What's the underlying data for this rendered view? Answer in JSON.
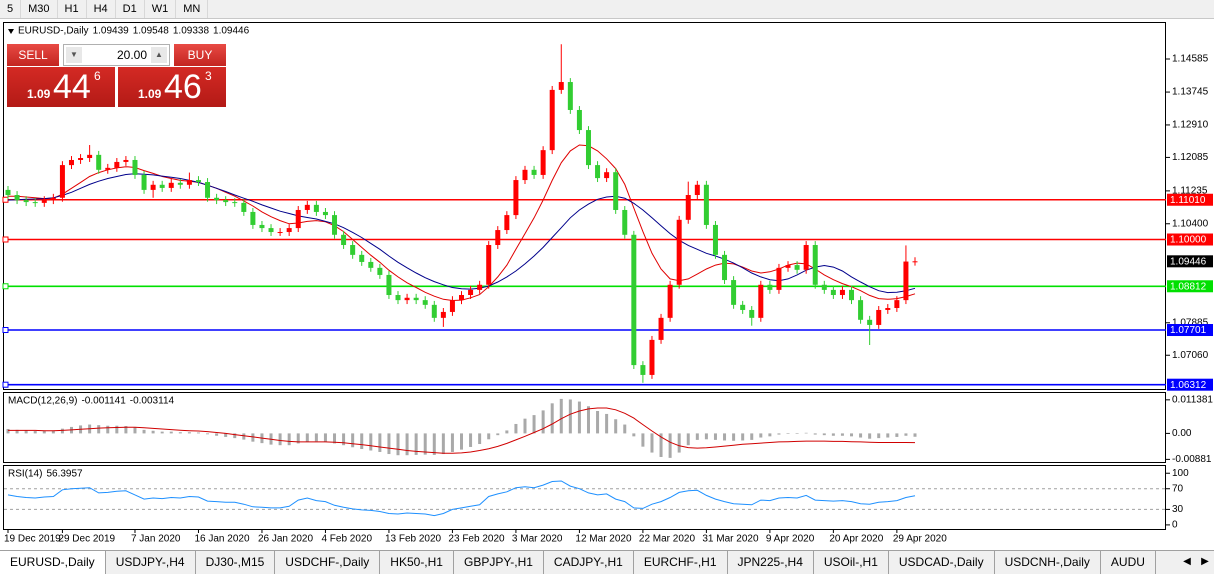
{
  "toolbar": [
    "5",
    "M30",
    "H1",
    "H4",
    "D1",
    "W1",
    "MN"
  ],
  "trade_panel": {
    "sell": "SELL",
    "volume": "20.00",
    "buy": "BUY",
    "bid": {
      "big": "1.09",
      "main": "44",
      "pip": "6"
    },
    "ask": {
      "big": "1.09",
      "main": "46",
      "pip": "3"
    }
  },
  "tabs": [
    "EURUSD-,Daily",
    "USDJPY-,H4",
    "DJ30-,M15",
    "USDCHF-,Daily",
    "HK50-,H1",
    "GBPJPY-,H1",
    "CADJPY-,H1",
    "EURCHF-,H1",
    "JPN225-,H4",
    "USOil-,H1",
    "USDCAD-,Daily",
    "USDCNH-,Daily",
    "AUDU"
  ],
  "chart_data": [
    {
      "type": "candlestick",
      "title": "EURUSD-,Daily",
      "categories": [
        "19 Dec 2019",
        null,
        null,
        null,
        null,
        null,
        "29 Dec 2019",
        null,
        null,
        null,
        null,
        null,
        null,
        null,
        "7 Jan 2020",
        null,
        null,
        null,
        null,
        null,
        null,
        "16 Jan 2020",
        null,
        null,
        null,
        null,
        null,
        null,
        "26 Jan 2020",
        null,
        null,
        null,
        null,
        null,
        null,
        "4 Feb 2020",
        null,
        null,
        null,
        null,
        null,
        null,
        "13 Feb 2020",
        null,
        null,
        null,
        null,
        null,
        null,
        "23 Feb 2020",
        null,
        null,
        null,
        null,
        null,
        null,
        "3 Mar 2020",
        null,
        null,
        null,
        null,
        null,
        null,
        "12 Mar 2020",
        null,
        null,
        null,
        null,
        null,
        null,
        "22 Mar 2020",
        null,
        null,
        null,
        null,
        null,
        null,
        "31 Mar 2020",
        null,
        null,
        null,
        null,
        null,
        null,
        "9 Apr 2020",
        null,
        null,
        null,
        null,
        null,
        null,
        "20 Apr 2020",
        null,
        null,
        null,
        null,
        null,
        null,
        "29 Apr 2020",
        null,
        null
      ],
      "open": [
        1.1126,
        1.1113,
        1.11,
        1.1095,
        1.1093,
        1.11,
        1.1106,
        1.1189,
        1.1202,
        1.1207,
        1.1215,
        1.1177,
        1.1182,
        1.1197,
        1.1202,
        1.1164,
        1.1126,
        1.1139,
        1.1131,
        1.1144,
        1.1139,
        1.1151,
        1.1146,
        1.1106,
        1.11,
        1.1095,
        1.1093,
        1.107,
        1.1037,
        1.1029,
        1.1019,
        1.1019,
        1.1029,
        1.1075,
        1.1088,
        1.107,
        1.1062,
        1.1012,
        1.0986,
        1.0961,
        1.0943,
        1.0928,
        1.091,
        1.0859,
        1.0846,
        1.0852,
        1.0846,
        1.0834,
        1.0801,
        1.0816,
        1.0846,
        1.0859,
        1.0872,
        1.0885,
        1.0986,
        1.1024,
        1.1062,
        1.1151,
        1.1177,
        1.1164,
        1.1227,
        1.138,
        1.14,
        1.1329,
        1.1278,
        1.1189,
        1.1156,
        1.1171,
        1.1075,
        1.1012,
        1.0681,
        1.0656,
        1.0745,
        1.0801,
        1.0885,
        1.105,
        1.1113,
        1.1139,
        1.1037,
        1.0961,
        1.0897,
        1.0834,
        1.0821,
        1.0801,
        1.0885,
        1.0872,
        1.0928,
        1.0935,
        1.0923,
        1.0986,
        1.0885,
        1.0872,
        1.0859,
        1.0872,
        1.0846,
        1.0796,
        1.0783,
        1.0821,
        1.0826,
        1.0846,
        1.09439
      ],
      "high": [
        1.1136,
        1.1123,
        1.111,
        1.1105,
        1.111,
        1.1116,
        1.1199,
        1.1212,
        1.1217,
        1.124,
        1.1225,
        1.1192,
        1.1207,
        1.1212,
        1.1212,
        1.1174,
        1.1149,
        1.1149,
        1.1154,
        1.1154,
        1.117,
        1.1161,
        1.1156,
        1.1116,
        1.111,
        1.1105,
        1.1103,
        1.108,
        1.1047,
        1.1039,
        1.1029,
        1.1039,
        1.1085,
        1.1098,
        1.1098,
        1.108,
        1.1072,
        1.1022,
        1.0996,
        1.0971,
        1.0953,
        1.0938,
        1.092,
        1.0869,
        1.0862,
        1.0862,
        1.0856,
        1.0844,
        1.0826,
        1.0856,
        1.0869,
        1.0882,
        1.0895,
        1.0996,
        1.1034,
        1.1072,
        1.1161,
        1.1187,
        1.1187,
        1.1237,
        1.139,
        1.1496,
        1.141,
        1.1339,
        1.1288,
        1.1199,
        1.1181,
        1.1181,
        1.1085,
        1.1022,
        1.0691,
        1.0755,
        1.0811,
        1.0895,
        1.106,
        1.1147,
        1.1149,
        1.1149,
        1.1047,
        1.0971,
        1.0907,
        1.0844,
        1.0831,
        1.0895,
        1.0895,
        1.0938,
        1.0945,
        1.0945,
        1.0996,
        1.0996,
        1.0895,
        1.0882,
        1.0882,
        1.0882,
        1.0856,
        1.0806,
        1.0831,
        1.0836,
        1.0856,
        1.0985,
        1.09548
      ],
      "low": [
        1.1103,
        1.109,
        1.1085,
        1.1083,
        1.1083,
        1.109,
        1.1096,
        1.1179,
        1.1192,
        1.1197,
        1.1167,
        1.1167,
        1.1172,
        1.1187,
        1.1154,
        1.1116,
        1.1106,
        1.1121,
        1.1121,
        1.1129,
        1.1129,
        1.1136,
        1.1096,
        1.109,
        1.1085,
        1.1083,
        1.106,
        1.1027,
        1.1019,
        1.1009,
        1.1009,
        1.1009,
        1.1019,
        1.1065,
        1.106,
        1.1052,
        1.1002,
        1.0976,
        1.0951,
        1.0933,
        1.0918,
        1.09,
        1.0849,
        1.0836,
        1.0836,
        1.0836,
        1.0824,
        1.0791,
        1.0778,
        1.0806,
        1.0836,
        1.0849,
        1.0862,
        1.0875,
        1.0976,
        1.1014,
        1.1052,
        1.1141,
        1.1154,
        1.1154,
        1.1217,
        1.137,
        1.1319,
        1.1268,
        1.1179,
        1.1146,
        1.1146,
        1.1065,
        1.1002,
        1.0671,
        1.0636,
        1.0646,
        1.0735,
        1.0791,
        1.0875,
        1.104,
        1.1103,
        1.1027,
        1.0951,
        1.0887,
        1.0824,
        1.0811,
        1.0781,
        1.0791,
        1.0862,
        1.0862,
        1.0918,
        1.0913,
        1.0913,
        1.0875,
        1.0862,
        1.0849,
        1.0849,
        1.0836,
        1.0786,
        1.0732,
        1.0773,
        1.0811,
        1.0816,
        1.0836,
        1.09338
      ],
      "close": [
        1.1113,
        1.11,
        1.1095,
        1.1093,
        1.11,
        1.1106,
        1.1189,
        1.1202,
        1.1207,
        1.1215,
        1.1177,
        1.1182,
        1.1197,
        1.1202,
        1.1164,
        1.1126,
        1.1139,
        1.1131,
        1.1144,
        1.1139,
        1.1151,
        1.1146,
        1.1106,
        1.11,
        1.1095,
        1.1093,
        1.107,
        1.1037,
        1.1029,
        1.1019,
        1.1019,
        1.1029,
        1.1075,
        1.1088,
        1.107,
        1.1062,
        1.1012,
        1.0986,
        1.0961,
        1.0943,
        1.0928,
        1.091,
        1.0859,
        1.0846,
        1.0852,
        1.0846,
        1.0834,
        1.0801,
        1.0816,
        1.0846,
        1.0859,
        1.0872,
        1.0885,
        1.0986,
        1.1024,
        1.1062,
        1.1151,
        1.1177,
        1.1164,
        1.1227,
        1.138,
        1.14,
        1.1329,
        1.1278,
        1.1189,
        1.1156,
        1.1171,
        1.1075,
        1.1012,
        1.0681,
        1.0656,
        1.0745,
        1.0801,
        1.0885,
        1.105,
        1.1113,
        1.1139,
        1.1037,
        1.0961,
        1.0897,
        1.0834,
        1.0821,
        1.0801,
        1.0885,
        1.0872,
        1.0928,
        1.0935,
        1.0923,
        1.0986,
        1.0885,
        1.0872,
        1.0859,
        1.0872,
        1.0846,
        1.0796,
        1.0783,
        1.0821,
        1.0826,
        1.0846,
        1.0944,
        1.09446
      ],
      "up_color": "#ff0000",
      "down_color": "#32cd32",
      "lines": [
        {
          "color": "#e00000",
          "values": [
            1.111,
            1.111,
            1.1108,
            1.1106,
            1.1104,
            1.1105,
            1.1115,
            1.113,
            1.1145,
            1.116,
            1.117,
            1.1177,
            1.1182,
            1.1185,
            1.1183,
            1.1175,
            1.1168,
            1.116,
            1.1155,
            1.115,
            1.1148,
            1.1145,
            1.1138,
            1.113,
            1.112,
            1.111,
            1.1098,
            1.1085,
            1.107,
            1.1058,
            1.1048,
            1.104,
            1.1042,
            1.1046,
            1.1048,
            1.1045,
            1.1035,
            1.102,
            1.1,
            1.098,
            1.096,
            1.0942,
            1.0922,
            1.0905,
            1.089,
            1.0878,
            1.0866,
            1.0856,
            1.0848,
            1.0845,
            1.0846,
            1.0852,
            1.086,
            1.088,
            1.0905,
            1.0935,
            1.0975,
            1.1015,
            1.1055,
            1.11,
            1.115,
            1.1195,
            1.1225,
            1.124,
            1.1238,
            1.1225,
            1.1205,
            1.118,
            1.114,
            1.108,
            1.102,
            1.0965,
            1.0925,
            1.09,
            1.0895,
            1.09,
            1.0912,
            1.0925,
            1.0935,
            1.094,
            1.0938,
            1.093,
            1.092,
            1.0915,
            1.0918,
            1.0925,
            1.0935,
            1.094,
            1.0938,
            1.0925,
            1.091,
            1.0898,
            1.0888,
            1.088,
            1.087,
            1.0858,
            1.085,
            1.0848,
            1.085,
            1.0855,
            1.0862
          ]
        },
        {
          "color": "#00008b",
          "values": [
            1.11,
            1.1101,
            1.1102,
            1.1103,
            1.1104,
            1.1106,
            1.1112,
            1.112,
            1.113,
            1.114,
            1.1148,
            1.1155,
            1.116,
            1.1165,
            1.1167,
            1.1166,
            1.1164,
            1.1161,
            1.1158,
            1.1155,
            1.115,
            1.1145,
            1.1138,
            1.113,
            1.1122,
            1.1113,
            1.1105,
            1.1097,
            1.1088,
            1.108,
            1.1072,
            1.1066,
            1.106,
            1.1056,
            1.1052,
            1.1046,
            1.104,
            1.103,
            1.1018,
            1.1005,
            1.099,
            1.0975,
            1.0958,
            1.0942,
            1.0928,
            1.0915,
            1.0903,
            1.0893,
            1.0885,
            1.0878,
            1.0875,
            1.0874,
            1.0876,
            1.0882,
            1.0892,
            1.0905,
            1.092,
            1.0938,
            1.0958,
            1.098,
            1.1005,
            1.103,
            1.1055,
            1.1075,
            1.109,
            1.1102,
            1.1108,
            1.111,
            1.1105,
            1.1092,
            1.1075,
            1.1055,
            1.1035,
            1.1015,
            1.0998,
            1.0985,
            1.0975,
            1.0965,
            1.0958,
            1.095,
            1.094,
            1.0928,
            1.0915,
            1.0905,
            1.0898,
            1.0895,
            1.09,
            1.091,
            1.0922,
            1.093,
            1.0934,
            1.093,
            1.092,
            1.0905,
            1.0892,
            1.088,
            1.087,
            1.0865,
            1.0866,
            1.087,
            1.0876
          ]
        }
      ],
      "levels": [
        {
          "value": 1.1101,
          "label": "1.11010",
          "color": "#ff0000"
        },
        {
          "value": 1.1,
          "label": "1.10000",
          "color": "#ff0000"
        },
        {
          "value": 1.08812,
          "color": "#00e000"
        },
        {
          "value": 1.07701,
          "color": "#0000ff"
        },
        {
          "value": 1.06312,
          "color": "#0000ff"
        }
      ],
      "ylim": [
        1.06228,
        1.15474
      ],
      "yticks": [
        1.14585,
        1.13745,
        {
          "value": 1.1291,
          "label": "1.12910"
        },
        1.12085,
        1.11235,
        {
          "value": 1.104,
          "label": "1.10400"
        },
        1.07885,
        {
          "value": 1.0706,
          "label": "1.07060"
        }
      ]
    },
    {
      "type": "macd",
      "title": "MACD(12,26,9)",
      "histogram": {
        "color": "#a9a9a9",
        "values": [
          0.0015,
          0.0012,
          0.001,
          0.0008,
          0.0008,
          0.0009,
          0.0016,
          0.0022,
          0.0027,
          0.003,
          0.0028,
          0.0026,
          0.0026,
          0.0025,
          0.002,
          0.0012,
          0.0009,
          0.0006,
          0.0006,
          0.0004,
          0.0004,
          0.0003,
          -0.0003,
          -0.0008,
          -0.0012,
          -0.0016,
          -0.0021,
          -0.0028,
          -0.0033,
          -0.0038,
          -0.004,
          -0.004,
          -0.0034,
          -0.0028,
          -0.0027,
          -0.0028,
          -0.0034,
          -0.004,
          -0.0047,
          -0.0053,
          -0.0058,
          -0.0063,
          -0.007,
          -0.0074,
          -0.0074,
          -0.0073,
          -0.0072,
          -0.0073,
          -0.007,
          -0.0063,
          -0.0055,
          -0.0046,
          -0.0036,
          -0.002,
          -0.0006,
          0.001,
          0.0032,
          0.005,
          0.0062,
          0.0078,
          0.0102,
          0.0117,
          0.0115,
          0.0108,
          0.0092,
          0.0076,
          0.0066,
          0.0048,
          0.003,
          -0.001,
          -0.0045,
          -0.0065,
          -0.008,
          -0.0083,
          -0.0065,
          -0.004,
          -0.0022,
          -0.002,
          -0.0022,
          -0.0024,
          -0.0025,
          -0.0024,
          -0.0022,
          -0.0014,
          -0.001,
          -0.0004,
          -0.0002,
          -0.0002,
          0.0002,
          -0.0004,
          -0.0006,
          -0.0008,
          -0.0008,
          -0.001,
          -0.0014,
          -0.0018,
          -0.0016,
          -0.0014,
          -0.0012,
          -0.0008,
          -0.001141
        ]
      },
      "signal": {
        "color": "#d00000",
        "values": [
          0.001,
          0.001,
          0.001,
          0.001,
          0.0009,
          0.0009,
          0.001,
          0.0012,
          0.0014,
          0.0016,
          0.0018,
          0.0019,
          0.002,
          0.0021,
          0.0021,
          0.0019,
          0.0017,
          0.0015,
          0.0013,
          0.0011,
          0.0009,
          0.0008,
          0.0006,
          0.0003,
          0.0,
          -0.0004,
          -0.0008,
          -0.0012,
          -0.0016,
          -0.002,
          -0.0024,
          -0.0027,
          -0.0029,
          -0.0029,
          -0.0029,
          -0.0029,
          -0.003,
          -0.0032,
          -0.0035,
          -0.0038,
          -0.0042,
          -0.0046,
          -0.005,
          -0.0054,
          -0.0058,
          -0.0061,
          -0.0063,
          -0.0065,
          -0.0067,
          -0.0067,
          -0.0066,
          -0.0063,
          -0.0058,
          -0.0052,
          -0.0044,
          -0.0034,
          -0.0022,
          -0.001,
          0.0003,
          0.0016,
          0.0032,
          0.005,
          0.0065,
          0.0076,
          0.0083,
          0.0086,
          0.0086,
          0.008,
          0.0068,
          0.0052,
          0.003,
          0.0008,
          -0.0012,
          -0.003,
          -0.0042,
          -0.0048,
          -0.005,
          -0.0049,
          -0.0046,
          -0.0043,
          -0.004,
          -0.0037,
          -0.0035,
          -0.0033,
          -0.0031,
          -0.0029,
          -0.0028,
          -0.0027,
          -0.0026,
          -0.0026,
          -0.0026,
          -0.0027,
          -0.0027,
          -0.0028,
          -0.0029,
          -0.003,
          -0.0031,
          -0.0031,
          -0.0031,
          -0.0031,
          -0.003114
        ]
      },
      "ylim": [
        -0.0097,
        0.0137
      ],
      "yticks": [
        0.011381,
        {
          "value": 0,
          "label": "0.00"
        },
        -0.00881
      ]
    },
    {
      "type": "rsi",
      "title": "RSI(14)",
      "color": "#1e90ff",
      "values": [
        58,
        55,
        53,
        52,
        54,
        55,
        68,
        70,
        71,
        72,
        62,
        63,
        65,
        66,
        58,
        50,
        52,
        51,
        53,
        52,
        55,
        54,
        46,
        45,
        44,
        44,
        40,
        35,
        34,
        33,
        33,
        36,
        48,
        52,
        47,
        45,
        38,
        34,
        31,
        29,
        28,
        26,
        22,
        21,
        23,
        22,
        21,
        18,
        22,
        30,
        33,
        36,
        39,
        55,
        60,
        64,
        72,
        74,
        72,
        77,
        84,
        85,
        75,
        70,
        62,
        58,
        60,
        50,
        45,
        33,
        32,
        40,
        45,
        53,
        63,
        66,
        67,
        57,
        50,
        45,
        41,
        40,
        39,
        48,
        47,
        52,
        53,
        52,
        57,
        48,
        47,
        46,
        47,
        45,
        41,
        40,
        44,
        45,
        47,
        53,
        56.3957
      ],
      "levels": [
        70,
        30
      ],
      "ylim": [
        -6,
        114
      ],
      "yticks": [
        100,
        70,
        30,
        0
      ]
    }
  ]
}
